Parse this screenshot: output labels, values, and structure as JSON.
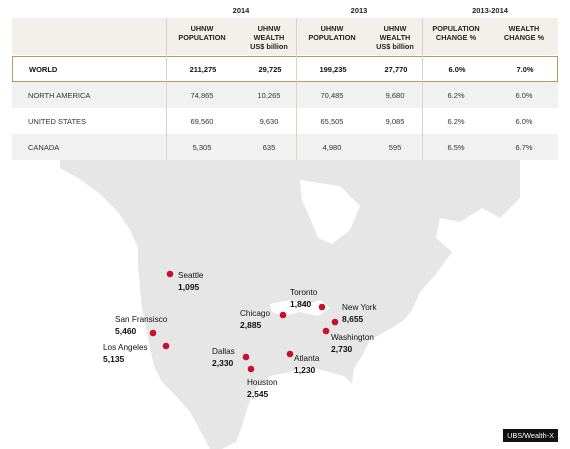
{
  "table": {
    "years": {
      "y2014": "2014",
      "y2013": "2013",
      "range": "2013-2014"
    },
    "headers": {
      "pop2014": [
        "UHNW",
        "POPULATION"
      ],
      "wealth2014": [
        "UHNW",
        "WEALTH",
        "US$ billion"
      ],
      "pop2013": [
        "UHNW",
        "POPULATION"
      ],
      "wealth2013": [
        "UHNW",
        "WEALTH",
        "US$ billion"
      ],
      "popchange": [
        "POPULATION",
        "CHANGE %"
      ],
      "wealthchange": [
        "WEALTH",
        "CHANGE %"
      ]
    },
    "rows": [
      {
        "region": "WORLD",
        "pop2014": "211,275",
        "wealth2014": "29,725",
        "pop2013": "199,235",
        "wealth2013": "27,770",
        "popchange": "6.0%",
        "wealthchange": "7.0%"
      },
      {
        "region": "NORTH AMERICA",
        "pop2014": "74,865",
        "wealth2014": "10,265",
        "pop2013": "70,485",
        "wealth2013": "9,680",
        "popchange": "6.2%",
        "wealthchange": "6.0%"
      },
      {
        "region": "UNITED STATES",
        "pop2014": "69,560",
        "wealth2014": "9,630",
        "pop2013": "65,505",
        "wealth2013": "9,085",
        "popchange": "6.2%",
        "wealthchange": "6.0%"
      },
      {
        "region": "CANADA",
        "pop2014": "5,305",
        "wealth2014": "635",
        "pop2013": "4,980",
        "wealth2013": "595",
        "popchange": "6.5%",
        "wealthchange": "6.7%"
      }
    ]
  },
  "cities": [
    {
      "name": "Seattle",
      "value": "1,095"
    },
    {
      "name": "San Fransisco",
      "value": "5,460"
    },
    {
      "name": "Los Angeles",
      "value": "5,135"
    },
    {
      "name": "Chicago",
      "value": "2,885"
    },
    {
      "name": "Toronto",
      "value": "1,840"
    },
    {
      "name": "New York",
      "value": "8,655"
    },
    {
      "name": "Washington",
      "value": "2,730"
    },
    {
      "name": "Dallas",
      "value": "2,330"
    },
    {
      "name": "Atlanta",
      "value": "1,230"
    },
    {
      "name": "Houston",
      "value": "2,545"
    }
  ],
  "source": "UBS/Wealth-X",
  "colors": {
    "dot": "#c8102e",
    "map": "#e6e6e6",
    "accent": "#b79a62"
  }
}
